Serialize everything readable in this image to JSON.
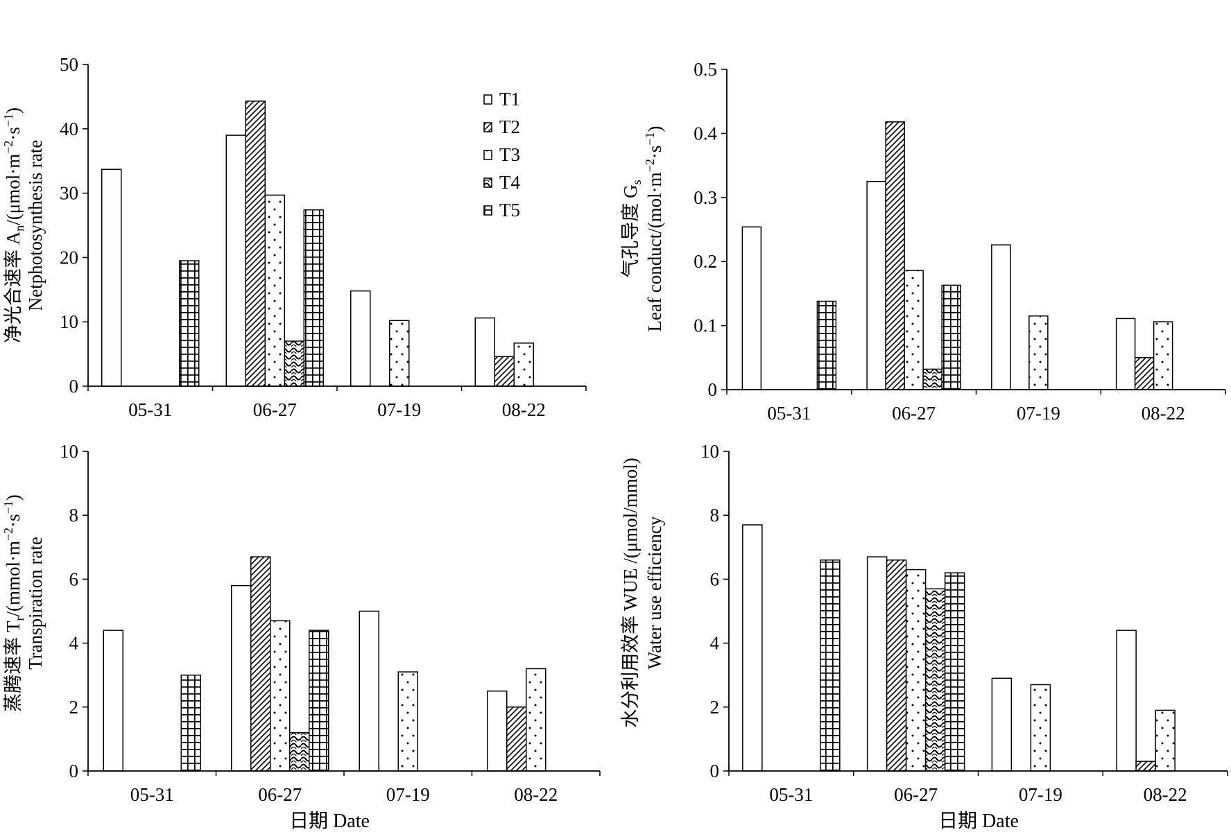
{
  "figure": {
    "legend_entries": [
      "T1",
      "T2",
      "T3",
      "T4",
      "T5"
    ],
    "bar_color": "#ffffff",
    "stroke_color": "#000000"
  },
  "chart_data": [
    {
      "type": "bar",
      "panel": "a",
      "categories": [
        "05-31",
        "06-27",
        "07-19",
        "08-22"
      ],
      "ylabel_zh": "净光合速率 A",
      "ylabel_sub": "n",
      "ylabel_unit": "/(μmol·m",
      "ylabel_unit_sup1": "−2",
      "ylabel_unit_mid": "·s",
      "ylabel_unit_sup2": "−1",
      "ylabel_unit_end": ")",
      "ylabel_en": "Netphotosynthesis rate",
      "xlabel": "",
      "ylim": [
        0,
        50
      ],
      "yticks": [
        "0",
        "10",
        "20",
        "30",
        "40",
        "50"
      ],
      "legend": "top-right",
      "series": [
        {
          "name": "T1",
          "pattern": "blank",
          "values": [
            33.7,
            39.0,
            14.8,
            10.6
          ]
        },
        {
          "name": "T2",
          "pattern": "hatch",
          "values": [
            0,
            44.3,
            0,
            4.6
          ]
        },
        {
          "name": "T3",
          "pattern": "dots",
          "values": [
            0,
            29.7,
            10.2,
            6.7
          ]
        },
        {
          "name": "T4",
          "pattern": "wave",
          "values": [
            0,
            7.0,
            0,
            0
          ]
        },
        {
          "name": "T5",
          "pattern": "grid",
          "values": [
            19.5,
            27.4,
            0,
            0
          ]
        }
      ]
    },
    {
      "type": "bar",
      "panel": "b",
      "categories": [
        "05-31",
        "06-27",
        "07-19",
        "08-22"
      ],
      "ylabel_zh": "气孔导度 G",
      "ylabel_sub": "s",
      "ylabel_en_unit": "Leaf conduct/(mol·m",
      "ylabel_unit_sup1": "−2",
      "ylabel_unit_mid": "·s",
      "ylabel_unit_sup2": "−1",
      "ylabel_unit_end": ")",
      "xlabel": "",
      "ylim": [
        0,
        0.5
      ],
      "yticks": [
        "0",
        "0.1",
        "0.2",
        "0.3",
        "0.4",
        "0.5"
      ],
      "series": [
        {
          "name": "T1",
          "pattern": "blank",
          "values": [
            0.254,
            0.325,
            0.226,
            0.111
          ]
        },
        {
          "name": "T2",
          "pattern": "hatch",
          "values": [
            0,
            0.418,
            0,
            0.05
          ]
        },
        {
          "name": "T3",
          "pattern": "dots",
          "values": [
            0,
            0.186,
            0.115,
            0.106
          ]
        },
        {
          "name": "T4",
          "pattern": "wave",
          "values": [
            0,
            0.032,
            0,
            0
          ]
        },
        {
          "name": "T5",
          "pattern": "grid",
          "values": [
            0.138,
            0.163,
            0,
            0
          ]
        }
      ]
    },
    {
      "type": "bar",
      "panel": "c",
      "categories": [
        "05-31",
        "06-27",
        "07-19",
        "08-22"
      ],
      "ylabel_zh": "蒸腾速率 T",
      "ylabel_sub": "r",
      "ylabel_unit": "/(mmol·m",
      "ylabel_unit_sup1": "−2",
      "ylabel_unit_mid": "·s",
      "ylabel_unit_sup2": "−1",
      "ylabel_unit_end": ")",
      "ylabel_en": "Transpiration rate",
      "xlabel": "日期 Date",
      "ylim": [
        0,
        10
      ],
      "yticks": [
        "0",
        "2",
        "4",
        "6",
        "8",
        "10"
      ],
      "series": [
        {
          "name": "T1",
          "pattern": "blank",
          "values": [
            4.4,
            5.8,
            5.0,
            2.5
          ]
        },
        {
          "name": "T2",
          "pattern": "hatch",
          "values": [
            0,
            6.7,
            0,
            2.0
          ]
        },
        {
          "name": "T3",
          "pattern": "dots",
          "values": [
            0,
            4.7,
            3.1,
            3.2
          ]
        },
        {
          "name": "T4",
          "pattern": "wave",
          "values": [
            0,
            1.2,
            0,
            0
          ]
        },
        {
          "name": "T5",
          "pattern": "grid",
          "values": [
            3.0,
            4.4,
            0,
            0
          ]
        }
      ]
    },
    {
      "type": "bar",
      "panel": "d",
      "categories": [
        "05-31",
        "06-27",
        "07-19",
        "08-22"
      ],
      "ylabel_zh": "水分利用效率 WUE /(μmol/mmol)",
      "ylabel_en": "Water use efficiency",
      "xlabel": "日期 Date",
      "ylim": [
        0,
        10
      ],
      "yticks": [
        "0",
        "2",
        "4",
        "6",
        "8",
        "10"
      ],
      "series": [
        {
          "name": "T1",
          "pattern": "blank",
          "values": [
            7.7,
            6.7,
            2.9,
            4.4
          ]
        },
        {
          "name": "T2",
          "pattern": "hatch",
          "values": [
            0,
            6.6,
            0,
            0.3
          ]
        },
        {
          "name": "T3",
          "pattern": "dots",
          "values": [
            0,
            6.3,
            2.7,
            1.9
          ]
        },
        {
          "name": "T4",
          "pattern": "wave",
          "values": [
            0,
            5.7,
            0,
            0
          ]
        },
        {
          "name": "T5",
          "pattern": "grid",
          "values": [
            6.6,
            6.2,
            0,
            0
          ]
        }
      ]
    }
  ]
}
